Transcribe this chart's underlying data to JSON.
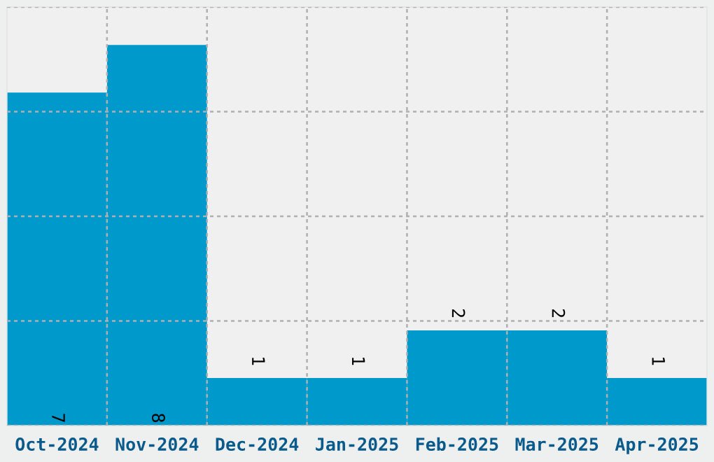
{
  "chart_data": {
    "type": "bar",
    "categories": [
      "Oct-2024",
      "Nov-2024",
      "Dec-2024",
      "Jan-2025",
      "Feb-2025",
      "Mar-2025",
      "Apr-2025"
    ],
    "values": [
      7,
      8,
      1,
      1,
      2,
      2,
      1
    ],
    "color": "#0099cc",
    "ylim": [
      0,
      8.8
    ],
    "yticks": [
      {
        "value": 0,
        "label": null
      },
      {
        "value": 2.2,
        "label": null
      },
      {
        "value": 4.4,
        "label": null
      },
      {
        "value": 6.6,
        "label": null
      },
      {
        "value": 8.8,
        "label": null
      }
    ],
    "tick_labels": "x",
    "grid": true,
    "data_labels": true
  }
}
